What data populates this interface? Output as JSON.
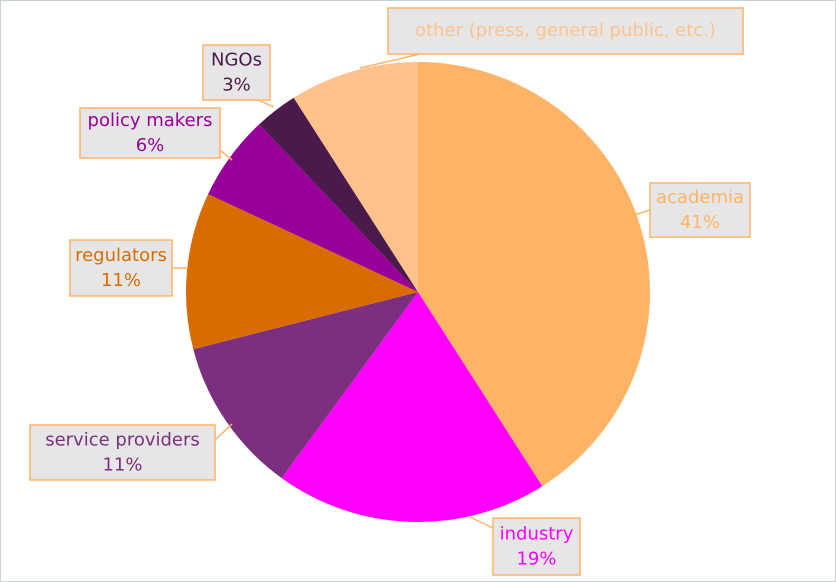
{
  "chart_data": {
    "type": "pie",
    "categories": [
      "academia",
      "industry",
      "service providers",
      "regulators",
      "policy makers",
      "NGOs",
      "other (press, general public, etc.)"
    ],
    "values": [
      41,
      19,
      11,
      11,
      6,
      3,
      9
    ],
    "value_labels": [
      "41%",
      "19%",
      "11%",
      "11%",
      "6%",
      "3%",
      null
    ],
    "colors": [
      "#ffb366",
      "#ff00ff",
      "#7b2f7e",
      "#d96c00",
      "#990099",
      "#4a1a4a",
      "#ffc28a"
    ],
    "label_colors": [
      "#ffb366",
      "#ff00ff",
      "#7b2f7e",
      "#d96c00",
      "#990099",
      "#4a1a4a",
      "#ffc28a"
    ]
  }
}
